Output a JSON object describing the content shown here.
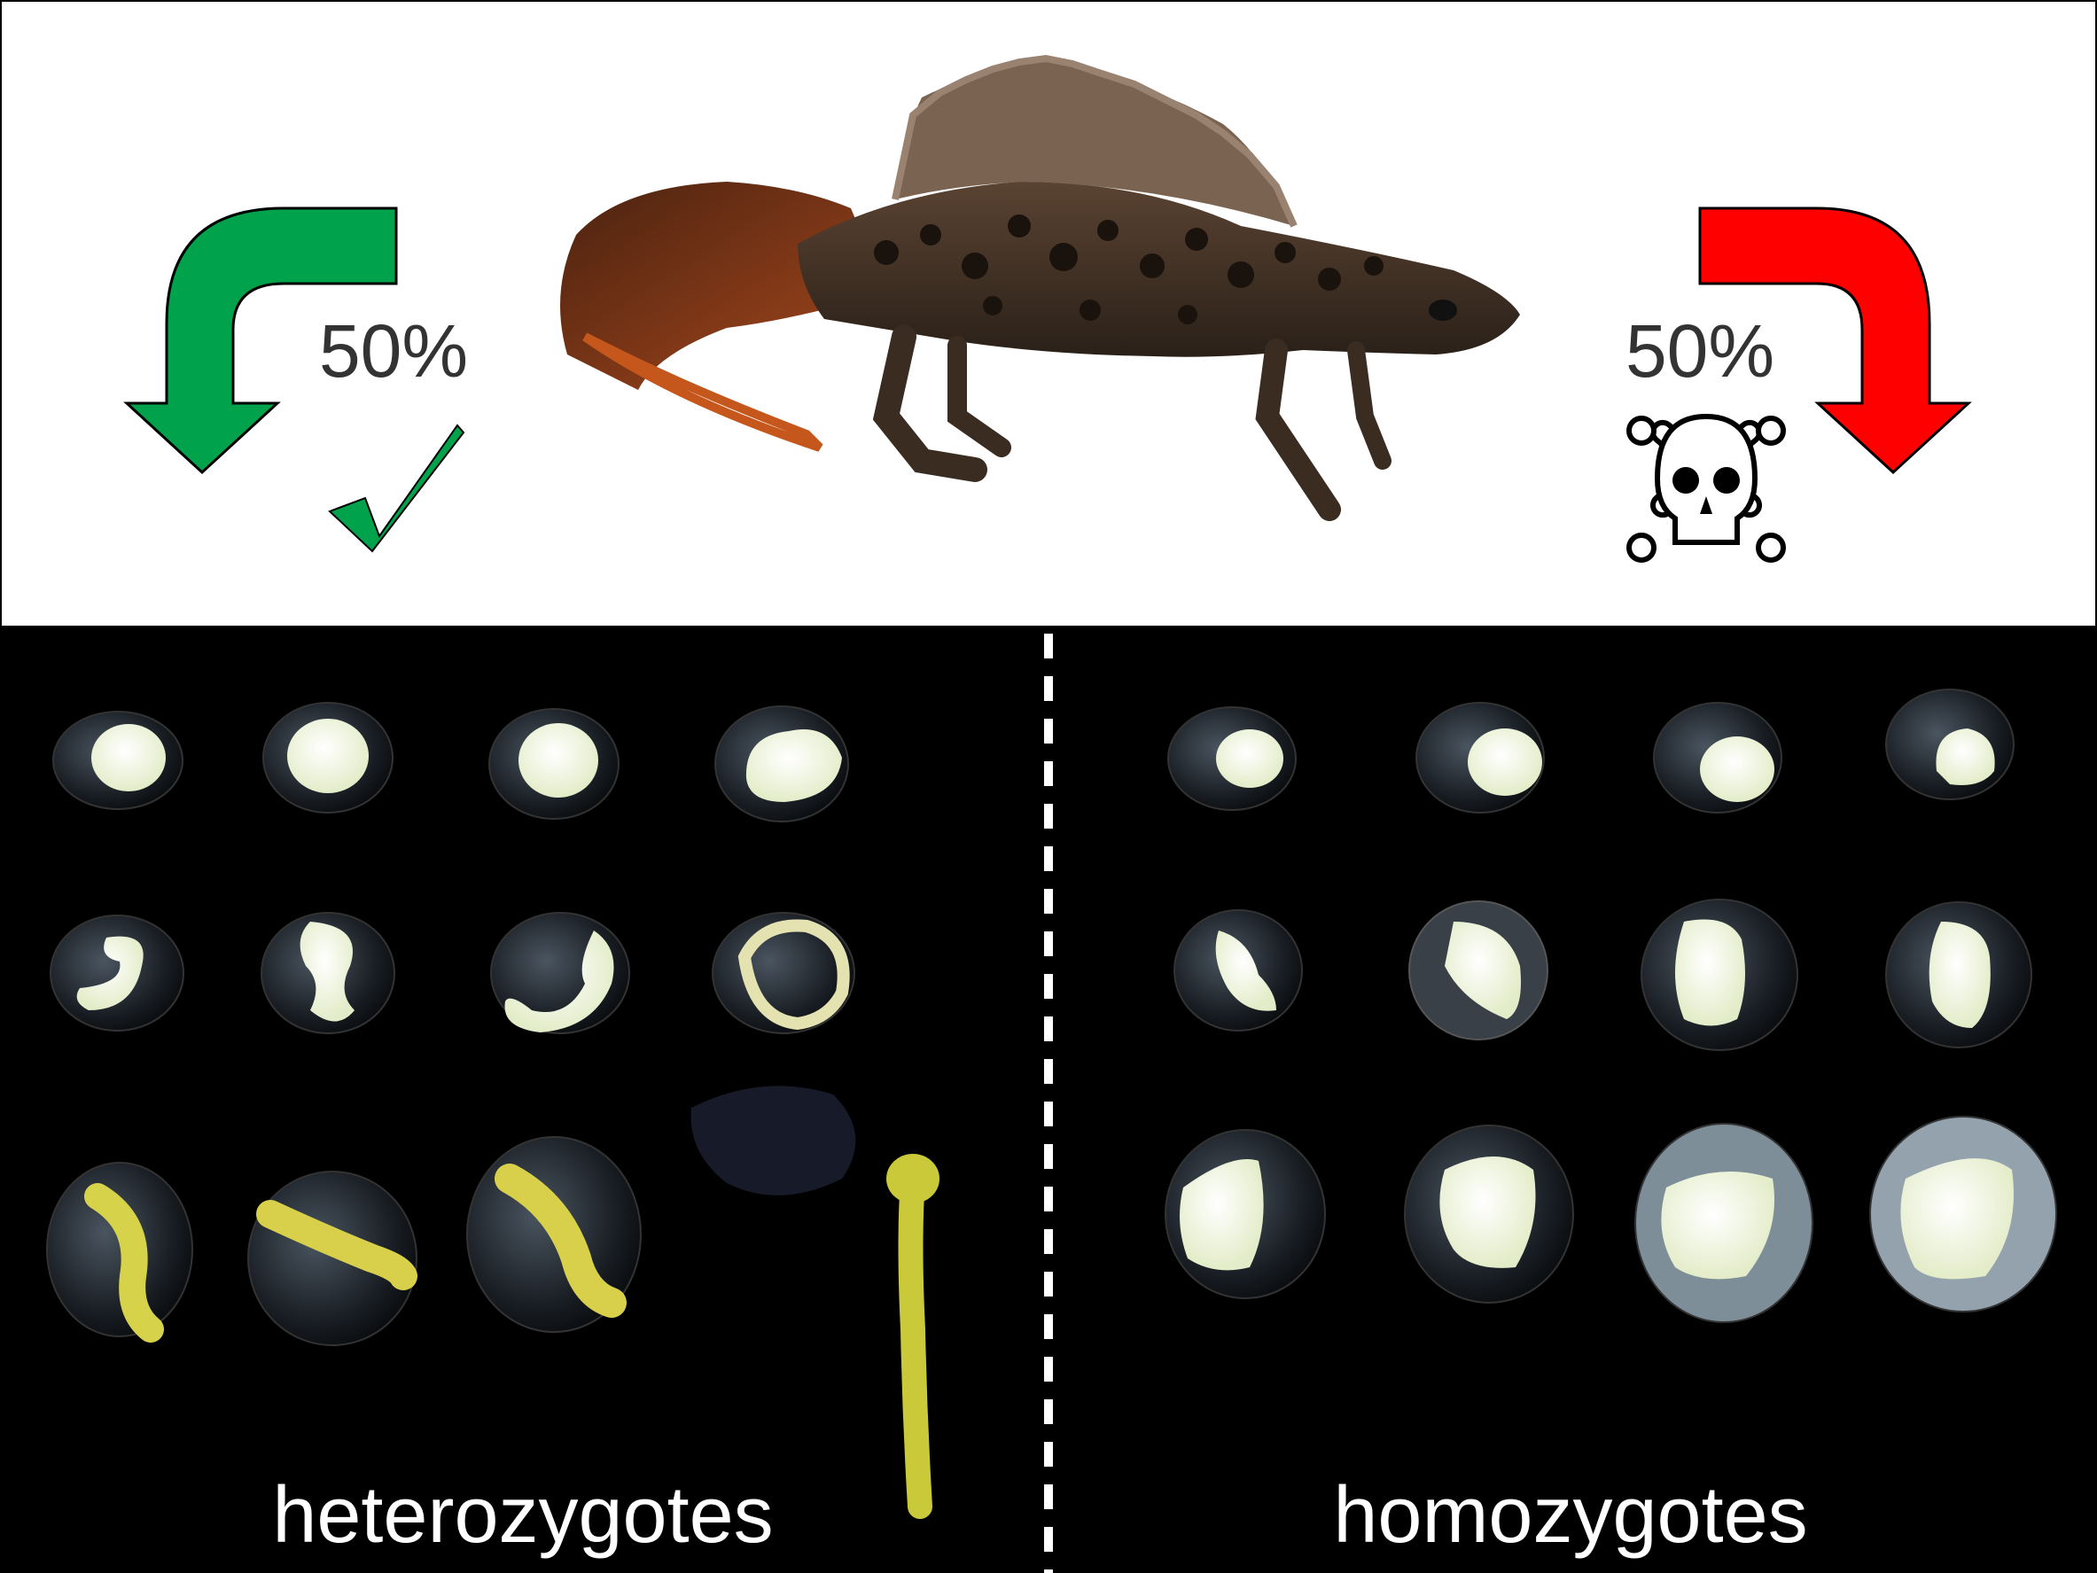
{
  "top_panel": {
    "left_outcome": {
      "percent": "50%",
      "arrow_color": "#00a24b",
      "symbol": "check-mark-icon",
      "symbol_color": "#00a24b"
    },
    "right_outcome": {
      "percent": "50%",
      "arrow_color": "#ff0000",
      "symbol": "skull-and-crossbones-icon"
    },
    "animal": "newt-photo"
  },
  "bottom_panel": {
    "background": "#000000",
    "left_label": "heterozygotes",
    "right_label": "homozygotes"
  }
}
